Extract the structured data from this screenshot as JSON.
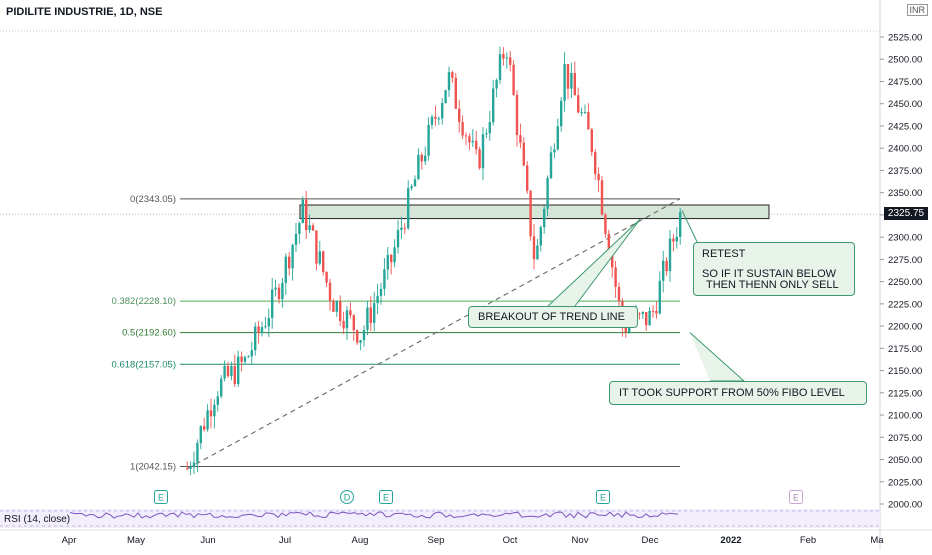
{
  "chart_title": "PIDILITE INDUSTRIE, 1D, NSE",
  "currency": "INR",
  "last_price_label": "2325.75",
  "rsi_label": "RSI (14, close)",
  "colors": {
    "up": "#26a69a",
    "down": "#ef5350",
    "fib_green": "#2e8b57",
    "box": "#3d9970"
  },
  "annotations": {
    "retest": "RETEST",
    "sustain_1": "SO IF IT SUSTAIN BELOW",
    "sustain_2": "THEN THENN ONLY SELL",
    "breakout": "BREAKOUT OF TREND LINE",
    "support": "IT TOOK SUPPORT FROM 50% FIBO LEVEL"
  },
  "event_markers": [
    {
      "label": "E",
      "month": "May"
    },
    {
      "label": "D",
      "month": "Aug"
    },
    {
      "label": "E",
      "month": "Aug"
    },
    {
      "label": "E",
      "month": "Nov"
    },
    {
      "label": "E",
      "month": "Jan"
    }
  ],
  "chart_data": {
    "type": "candlestick",
    "title": "PIDILITE INDUSTRIE, 1D, NSE",
    "ylim": [
      1990,
      2545
    ],
    "y_ticks": [
      2000,
      2025,
      2050,
      2075,
      2100,
      2125,
      2150,
      2175,
      2200,
      2225,
      2250,
      2275,
      2300,
      2325,
      2350,
      2375,
      2400,
      2425,
      2450,
      2475,
      2500,
      2525
    ],
    "y_tick_labels": [
      "2000.00",
      "2025.00",
      "2050.00",
      "2075.00",
      "2100.00",
      "2125.00",
      "2150.00",
      "2175.00",
      "2200.00",
      "2225.00",
      "2250.00",
      "2275.00",
      "2300.00",
      "2325.00",
      "2350.00",
      "2375.00",
      "2400.00",
      "2425.00",
      "2450.00",
      "2475.00",
      "2500.00",
      "2525.00"
    ],
    "x_labels": [
      "Apr",
      "May",
      "Jun",
      "Jul",
      "Aug",
      "Sep",
      "Oct",
      "Nov",
      "Dec",
      "2022",
      "Feb",
      "Ma"
    ],
    "fib_levels": [
      {
        "label": "0(2343.05)",
        "value": 2343.05
      },
      {
        "label": "0.382(2228.10)",
        "value": 2228.1
      },
      {
        "label": "0.5(2192.60)",
        "value": 2192.6
      },
      {
        "label": "0.618(2157.05)",
        "value": 2157.05
      },
      {
        "label": "1(2042.15)",
        "value": 2042.15
      }
    ],
    "last_price": 2325.75,
    "resistance_zone": [
      2322,
      2335
    ],
    "trend_line": {
      "from": [
        "May",
        2040
      ],
      "to": [
        "Dec",
        2343
      ]
    },
    "waypoints": [
      [
        "May",
        2040
      ],
      [
        "Jun",
        2130
      ],
      [
        "Jun",
        2160
      ],
      [
        "Jul",
        2230
      ],
      [
        "Jul",
        2330
      ],
      [
        "Aug",
        2230
      ],
      [
        "Aug",
        2190
      ],
      [
        "Sep",
        2270
      ],
      [
        "Sep",
        2380
      ],
      [
        "Oct",
        2480
      ],
      [
        "Oct",
        2380
      ],
      [
        "Oct",
        2520
      ],
      [
        "Nov",
        2270
      ],
      [
        "Nov",
        2490
      ],
      [
        "Nov",
        2400
      ],
      [
        "Dec",
        2200
      ],
      [
        "Dec",
        2210
      ],
      [
        "Dec",
        2325
      ]
    ]
  }
}
